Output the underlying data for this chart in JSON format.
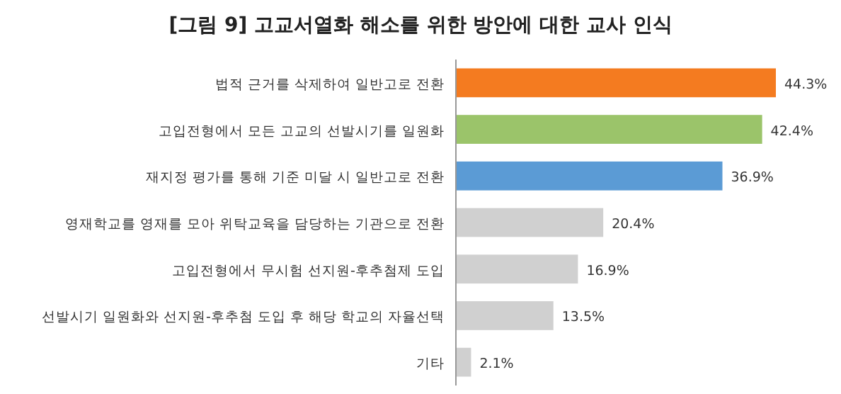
{
  "chart_data": {
    "type": "bar",
    "orientation": "horizontal",
    "title": "[그림 9] 고교서열화 해소를 위한 방안에 대한 교사 인식",
    "categories": [
      "법적 근거를 삭제하여 일반고로 전환",
      "고입전형에서 모든 고교의 선발시기를 일원화",
      "재지정 평가를 통해 기준 미달 시 일반고로 전환",
      "영재학교를 영재를 모아 위탁교육을 담당하는 기관으로 전환",
      "고입전형에서 무시험 선지원-후추첨제 도입",
      "선발시기 일원화와 선지원-후추첨 도입 후 해당 학교의 자율선택",
      "기타"
    ],
    "values": [
      44.3,
      42.4,
      36.9,
      20.4,
      16.9,
      13.5,
      2.1
    ],
    "colors": [
      "#f47b20",
      "#9bc46a",
      "#5b9bd5",
      "#d0d0d0",
      "#d0d0d0",
      "#d0d0d0",
      "#d0d0d0"
    ],
    "value_labels": [
      "44.3%",
      "42.4%",
      "36.9%",
      "20.4%",
      "16.9%",
      "13.5%",
      "2.1%"
    ]
  }
}
